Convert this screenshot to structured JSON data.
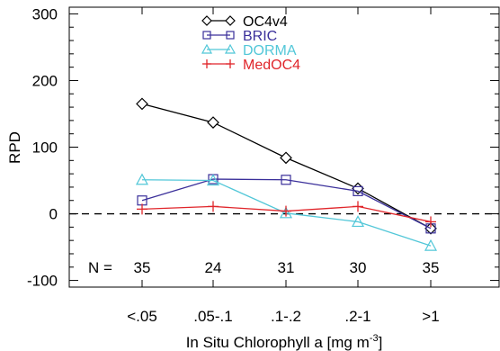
{
  "chart_data": {
    "type": "line",
    "ylabel": "RPD",
    "xlabel_main": "In Situ Chlorophyll a [mg m",
    "xlabel_sup": "-3",
    "xlabel_close": "]",
    "categories": [
      "<.05",
      ".05-.1",
      ".1-.2",
      ".2-1",
      ">1"
    ],
    "counts_label": "N =",
    "counts": [
      "35",
      "24",
      "31",
      "30",
      "35"
    ],
    "ylim": [
      -110,
      310
    ],
    "yticks": [
      "300",
      "200",
      "100",
      "0",
      "-100"
    ],
    "ytick_values": [
      300,
      200,
      100,
      0,
      -100
    ],
    "reference_line": 0,
    "legend_position": "top-center",
    "series": [
      {
        "name": "OC4v4",
        "color": "#000000",
        "marker": "diamond",
        "values": [
          165,
          137,
          84,
          38,
          -22
        ]
      },
      {
        "name": "BRIC",
        "color": "#3a2f9a",
        "marker": "square",
        "values": [
          20,
          52,
          51,
          34,
          -22
        ]
      },
      {
        "name": "DORMA",
        "color": "#52c7d8",
        "marker": "triangle",
        "values": [
          51,
          50,
          1,
          -12,
          -48
        ]
      },
      {
        "name": "MedOC4",
        "color": "#e0252a",
        "marker": "plus",
        "values": [
          7,
          11,
          4,
          11,
          -12
        ]
      }
    ]
  }
}
